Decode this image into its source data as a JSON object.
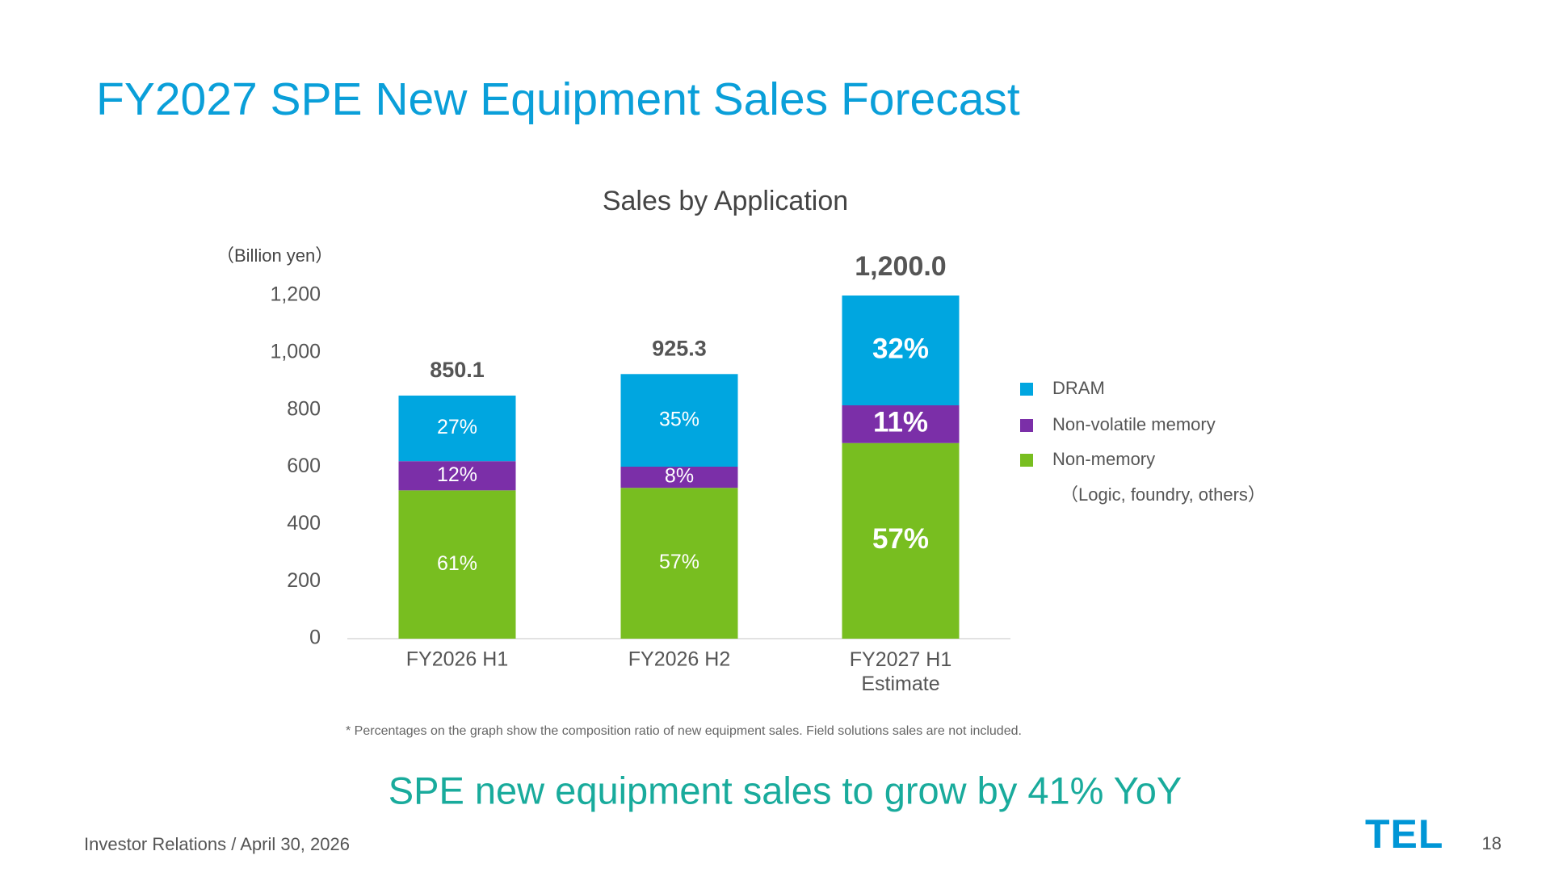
{
  "header": {
    "title": "FY2027 SPE New Equipment Sales Forecast"
  },
  "chart_data": {
    "type": "stacked_bar",
    "title": "Sales by Application",
    "y_label": "（Billion yen）",
    "categories": [
      "FY2026 H1",
      "FY2026 H2",
      "FY2027 H1\nEstimate"
    ],
    "series": [
      {
        "name": "Non-memory",
        "color": "#78be20",
        "values": [
          518.6,
          527.4,
          684.0
        ],
        "value_labels": [
          "61%",
          "57%",
          "57%"
        ]
      },
      {
        "name": "Non-volatile memory",
        "color": "#7b2fa8",
        "values": [
          102.0,
          74.0,
          132.0
        ],
        "value_labels": [
          "12%",
          "8%",
          "11%"
        ]
      },
      {
        "name": "DRAM",
        "color": "#00a6e0",
        "values": [
          229.5,
          323.9,
          384.0
        ],
        "value_labels": [
          "27%",
          "35%",
          "32%"
        ]
      }
    ],
    "totals": [
      850.1,
      925.3,
      1200.0
    ],
    "total_labels": [
      "850.1",
      "925.3",
      "1,200.0"
    ],
    "legend_note": "（Logic, foundry, others）",
    "ylim": [
      0,
      1200
    ],
    "yticks": [
      0,
      200,
      400,
      600,
      800,
      {
        "value": 1000,
        "label": "1,000"
      },
      {
        "value": 1200,
        "label": "1,200"
      }
    ],
    "footnote": "* Percentages on the graph show the composition ratio of new equipment sales. Field solutions sales are not included."
  },
  "headline": "SPE new equipment sales to grow by 41% YoY",
  "footer": {
    "text": "Investor Relations / April 30, 2026",
    "logo": "TEL",
    "page": "18"
  }
}
